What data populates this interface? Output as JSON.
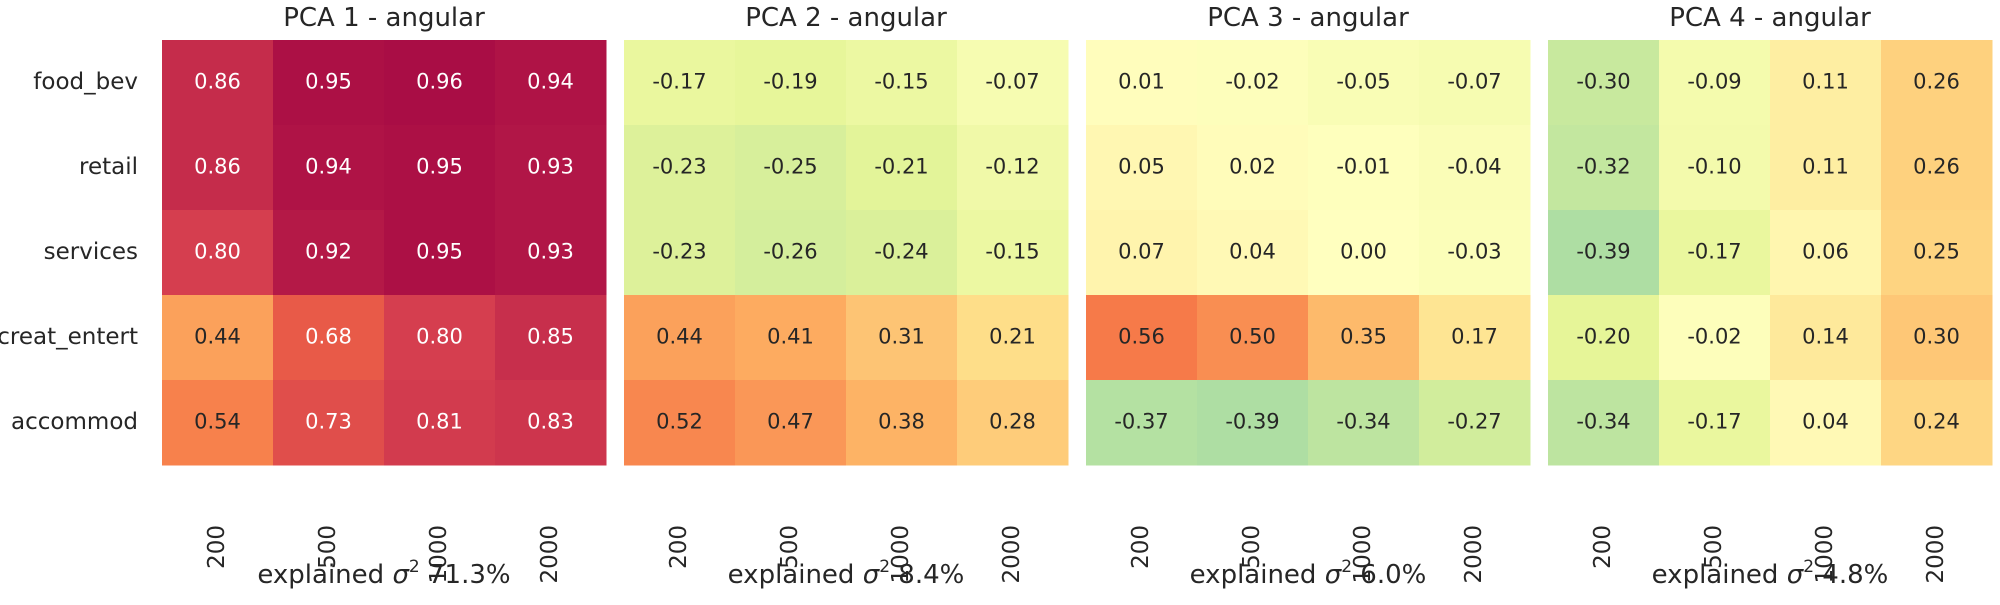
{
  "chart_data": [
    {
      "type": "heatmap",
      "title": "PCA 1 - angular",
      "xlabel_prefix": "explained ",
      "xlabel_symbol": "σ",
      "xlabel_exp": "2",
      "xlabel_value": " 71.3%",
      "rows": [
        "food_bev",
        "retail",
        "services",
        "creat_entert",
        "accommod"
      ],
      "columns": [
        "200",
        "500",
        "1000",
        "2000"
      ],
      "values": [
        [
          0.86,
          0.95,
          0.96,
          0.94
        ],
        [
          0.86,
          0.94,
          0.95,
          0.93
        ],
        [
          0.8,
          0.92,
          0.95,
          0.93
        ],
        [
          0.44,
          0.68,
          0.8,
          0.85
        ],
        [
          0.54,
          0.73,
          0.81,
          0.83
        ]
      ],
      "value_labels": [
        [
          "0.86",
          "0.95",
          "0.96",
          "0.94"
        ],
        [
          "0.86",
          "0.94",
          "0.95",
          "0.93"
        ],
        [
          "0.80",
          "0.92",
          "0.95",
          "0.93"
        ],
        [
          "0.44",
          "0.68",
          "0.80",
          "0.85"
        ],
        [
          "0.54",
          "0.73",
          "0.81",
          "0.83"
        ]
      ],
      "vlim": [
        -1,
        1
      ],
      "colormap": "Spectral_r",
      "grid": false,
      "legend": "none"
    },
    {
      "type": "heatmap",
      "title": "PCA 2 - angular",
      "xlabel_prefix": "explained ",
      "xlabel_symbol": "σ",
      "xlabel_exp": "2",
      "xlabel_value": " 8.4%",
      "rows": [
        "food_bev",
        "retail",
        "services",
        "creat_entert",
        "accommod"
      ],
      "columns": [
        "200",
        "500",
        "1000",
        "2000"
      ],
      "values": [
        [
          -0.17,
          -0.19,
          -0.15,
          -0.07
        ],
        [
          -0.23,
          -0.25,
          -0.21,
          -0.12
        ],
        [
          -0.23,
          -0.26,
          -0.24,
          -0.15
        ],
        [
          0.44,
          0.41,
          0.31,
          0.21
        ],
        [
          0.52,
          0.47,
          0.38,
          0.28
        ]
      ],
      "value_labels": [
        [
          "-0.17",
          "-0.19",
          "-0.15",
          "-0.07"
        ],
        [
          "-0.23",
          "-0.25",
          "-0.21",
          "-0.12"
        ],
        [
          "-0.23",
          "-0.26",
          "-0.24",
          "-0.15"
        ],
        [
          "0.44",
          "0.41",
          "0.31",
          "0.21"
        ],
        [
          "0.52",
          "0.47",
          "0.38",
          "0.28"
        ]
      ],
      "vlim": [
        -1,
        1
      ],
      "colormap": "Spectral_r",
      "grid": false,
      "legend": "none"
    },
    {
      "type": "heatmap",
      "title": "PCA 3 - angular",
      "xlabel_prefix": "explained ",
      "xlabel_symbol": "σ",
      "xlabel_exp": "2",
      "xlabel_value": " 6.0%",
      "rows": [
        "food_bev",
        "retail",
        "services",
        "creat_entert",
        "accommod"
      ],
      "columns": [
        "200",
        "500",
        "1000",
        "2000"
      ],
      "values": [
        [
          0.01,
          -0.02,
          -0.05,
          -0.07
        ],
        [
          0.05,
          0.02,
          -0.01,
          -0.04
        ],
        [
          0.07,
          0.04,
          0.0,
          -0.03
        ],
        [
          0.56,
          0.5,
          0.35,
          0.17
        ],
        [
          -0.37,
          -0.39,
          -0.34,
          -0.27
        ]
      ],
      "value_labels": [
        [
          "0.01",
          "-0.02",
          "-0.05",
          "-0.07"
        ],
        [
          "0.05",
          "0.02",
          "-0.01",
          "-0.04"
        ],
        [
          "0.07",
          "0.04",
          "0.00",
          "-0.03"
        ],
        [
          "0.56",
          "0.50",
          "0.35",
          "0.17"
        ],
        [
          "-0.37",
          "-0.39",
          "-0.34",
          "-0.27"
        ]
      ],
      "vlim": [
        -1,
        1
      ],
      "colormap": "Spectral_r",
      "grid": false,
      "legend": "none"
    },
    {
      "type": "heatmap",
      "title": "PCA 4 - angular",
      "xlabel_prefix": "explained ",
      "xlabel_symbol": "σ",
      "xlabel_exp": "2",
      "xlabel_value": " 4.8%",
      "rows": [
        "food_bev",
        "retail",
        "services",
        "creat_entert",
        "accommod"
      ],
      "columns": [
        "200",
        "500",
        "1000",
        "2000"
      ],
      "values": [
        [
          -0.3,
          -0.09,
          0.11,
          0.26
        ],
        [
          -0.32,
          -0.1,
          0.11,
          0.26
        ],
        [
          -0.39,
          -0.17,
          0.06,
          0.25
        ],
        [
          -0.2,
          -0.02,
          0.14,
          0.3
        ],
        [
          -0.34,
          -0.17,
          0.04,
          0.24
        ]
      ],
      "value_labels": [
        [
          "-0.30",
          "-0.09",
          "0.11",
          "0.26"
        ],
        [
          "-0.32",
          "-0.10",
          "0.11",
          "0.26"
        ],
        [
          "-0.39",
          "-0.17",
          "0.06",
          "0.25"
        ],
        [
          "-0.20",
          "-0.02",
          "0.14",
          "0.30"
        ],
        [
          "-0.34",
          "-0.17",
          "0.04",
          "0.24"
        ]
      ],
      "vlim": [
        -1,
        1
      ],
      "colormap": "Spectral_r",
      "grid": false,
      "legend": "none"
    }
  ]
}
